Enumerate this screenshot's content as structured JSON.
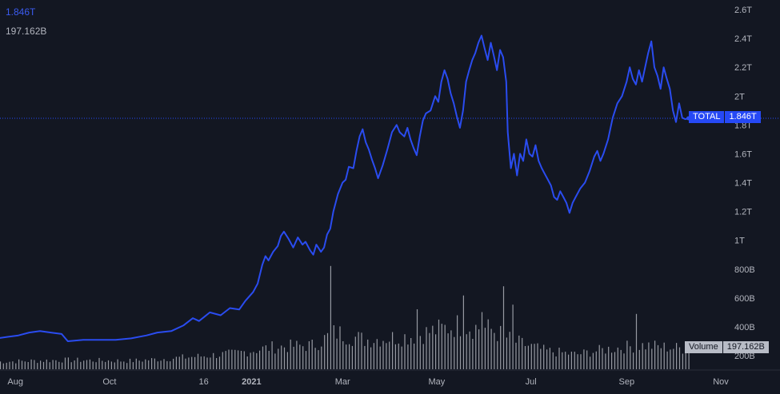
{
  "legend": {
    "price": "1.846T",
    "volume": "197.162B"
  },
  "labels": {
    "total_key": "TOTAL",
    "total_value": "1.846T",
    "volume_key": "Volume",
    "volume_value": "197.162B"
  },
  "colors": {
    "background": "#131722",
    "line": "#2a4cf0",
    "volume": "#c3c6ce",
    "axis_text": "#b2b5be"
  },
  "chart_data": {
    "type": "line",
    "title": "",
    "y_unit": "USD (trillions)",
    "ylim": [
      0.2,
      2.6
    ],
    "ytick_labels": [
      {
        "v": 2.6,
        "t": "2.6T"
      },
      {
        "v": 2.4,
        "t": "2.4T"
      },
      {
        "v": 2.2,
        "t": "2.2T"
      },
      {
        "v": 2.0,
        "t": "2T"
      },
      {
        "v": 1.8,
        "t": "1.8T"
      },
      {
        "v": 1.6,
        "t": "1.6T"
      },
      {
        "v": 1.4,
        "t": "1.4T"
      },
      {
        "v": 1.2,
        "t": "1.2T"
      },
      {
        "v": 1.0,
        "t": "1T"
      },
      {
        "v": 0.8,
        "t": "800B"
      },
      {
        "v": 0.6,
        "t": "600B"
      },
      {
        "v": 0.4,
        "t": "400B"
      },
      {
        "v": 0.2,
        "t": "200B"
      }
    ],
    "xlim": [
      "2020-07-20",
      "2021-11-01"
    ],
    "xtick_labels": [
      {
        "d": "2020-08-01",
        "t": "Aug",
        "bold": false
      },
      {
        "d": "2020-10-01",
        "t": "Oct",
        "bold": false
      },
      {
        "d": "2020-12-01",
        "t": "16",
        "bold": false
      },
      {
        "d": "2021-01-01",
        "t": "2021",
        "bold": true
      },
      {
        "d": "2021-03-01",
        "t": "Mar",
        "bold": false
      },
      {
        "d": "2021-05-01",
        "t": "May",
        "bold": false
      },
      {
        "d": "2021-07-01",
        "t": "Jul",
        "bold": false
      },
      {
        "d": "2021-09-01",
        "t": "Sep",
        "bold": false
      },
      {
        "d": "2021-11-01",
        "t": "Nov",
        "bold": false
      }
    ],
    "last_value": 1.846,
    "series": [
      {
        "points": [
          [
            "2020-07-20",
            0.32
          ],
          [
            "2020-07-27",
            0.33
          ],
          [
            "2020-08-03",
            0.34
          ],
          [
            "2020-08-10",
            0.36
          ],
          [
            "2020-08-17",
            0.37
          ],
          [
            "2020-08-24",
            0.36
          ],
          [
            "2020-08-31",
            0.35
          ],
          [
            "2020-09-04",
            0.3
          ],
          [
            "2020-09-14",
            0.31
          ],
          [
            "2020-09-24",
            0.31
          ],
          [
            "2020-10-05",
            0.31
          ],
          [
            "2020-10-15",
            0.32
          ],
          [
            "2020-10-25",
            0.34
          ],
          [
            "2020-11-01",
            0.36
          ],
          [
            "2020-11-10",
            0.37
          ],
          [
            "2020-11-18",
            0.41
          ],
          [
            "2020-11-24",
            0.46
          ],
          [
            "2020-11-28",
            0.44
          ],
          [
            "2020-12-05",
            0.5
          ],
          [
            "2020-12-12",
            0.48
          ],
          [
            "2020-12-18",
            0.53
          ],
          [
            "2020-12-24",
            0.52
          ],
          [
            "2020-12-28",
            0.58
          ],
          [
            "2021-01-02",
            0.64
          ],
          [
            "2021-01-05",
            0.7
          ],
          [
            "2021-01-08",
            0.83
          ],
          [
            "2021-01-10",
            0.89
          ],
          [
            "2021-01-12",
            0.86
          ],
          [
            "2021-01-15",
            0.92
          ],
          [
            "2021-01-18",
            0.96
          ],
          [
            "2021-01-20",
            1.03
          ],
          [
            "2021-01-22",
            1.06
          ],
          [
            "2021-01-25",
            1.01
          ],
          [
            "2021-01-28",
            0.95
          ],
          [
            "2021-01-31",
            1.02
          ],
          [
            "2021-02-03",
            0.97
          ],
          [
            "2021-02-05",
            0.99
          ],
          [
            "2021-02-08",
            0.93
          ],
          [
            "2021-02-10",
            0.9
          ],
          [
            "2021-02-12",
            0.97
          ],
          [
            "2021-02-15",
            0.92
          ],
          [
            "2021-02-17",
            0.95
          ],
          [
            "2021-02-19",
            1.04
          ],
          [
            "2021-02-21",
            1.08
          ],
          [
            "2021-02-23",
            1.2
          ],
          [
            "2021-02-26",
            1.32
          ],
          [
            "2021-03-01",
            1.4
          ],
          [
            "2021-03-03",
            1.42
          ],
          [
            "2021-03-05",
            1.51
          ],
          [
            "2021-03-08",
            1.5
          ],
          [
            "2021-03-10",
            1.62
          ],
          [
            "2021-03-12",
            1.72
          ],
          [
            "2021-03-14",
            1.77
          ],
          [
            "2021-03-16",
            1.68
          ],
          [
            "2021-03-18",
            1.63
          ],
          [
            "2021-03-20",
            1.56
          ],
          [
            "2021-03-22",
            1.5
          ],
          [
            "2021-03-24",
            1.43
          ],
          [
            "2021-03-27",
            1.52
          ],
          [
            "2021-03-30",
            1.63
          ],
          [
            "2021-04-02",
            1.75
          ],
          [
            "2021-04-05",
            1.8
          ],
          [
            "2021-04-07",
            1.75
          ],
          [
            "2021-04-10",
            1.72
          ],
          [
            "2021-04-12",
            1.78
          ],
          [
            "2021-04-14",
            1.7
          ],
          [
            "2021-04-16",
            1.64
          ],
          [
            "2021-04-18",
            1.59
          ],
          [
            "2021-04-20",
            1.72
          ],
          [
            "2021-04-22",
            1.83
          ],
          [
            "2021-04-24",
            1.88
          ],
          [
            "2021-04-27",
            1.9
          ],
          [
            "2021-04-30",
            2.0
          ],
          [
            "2021-05-02",
            1.96
          ],
          [
            "2021-05-04",
            2.1
          ],
          [
            "2021-05-06",
            2.18
          ],
          [
            "2021-05-08",
            2.12
          ],
          [
            "2021-05-10",
            2.02
          ],
          [
            "2021-05-12",
            1.95
          ],
          [
            "2021-05-14",
            1.86
          ],
          [
            "2021-05-16",
            1.78
          ],
          [
            "2021-05-18",
            1.9
          ],
          [
            "2021-05-20",
            2.1
          ],
          [
            "2021-05-22",
            2.18
          ],
          [
            "2021-05-24",
            2.25
          ],
          [
            "2021-05-26",
            2.3
          ],
          [
            "2021-05-28",
            2.37
          ],
          [
            "2021-05-30",
            2.42
          ],
          [
            "2021-06-01",
            2.33
          ],
          [
            "2021-06-03",
            2.25
          ],
          [
            "2021-06-05",
            2.37
          ],
          [
            "2021-06-07",
            2.28
          ],
          [
            "2021-06-09",
            2.18
          ],
          [
            "2021-06-11",
            2.32
          ],
          [
            "2021-06-13",
            2.27
          ],
          [
            "2021-06-15",
            2.1
          ],
          [
            "2021-06-16",
            1.75
          ],
          [
            "2021-06-18",
            1.5
          ],
          [
            "2021-06-20",
            1.6
          ],
          [
            "2021-06-22",
            1.45
          ],
          [
            "2021-06-24",
            1.6
          ],
          [
            "2021-06-26",
            1.55
          ],
          [
            "2021-06-28",
            1.7
          ],
          [
            "2021-06-30",
            1.6
          ],
          [
            "2021-07-02",
            1.58
          ],
          [
            "2021-07-04",
            1.66
          ],
          [
            "2021-07-06",
            1.55
          ],
          [
            "2021-07-08",
            1.5
          ],
          [
            "2021-07-10",
            1.46
          ],
          [
            "2021-07-12",
            1.42
          ],
          [
            "2021-07-14",
            1.38
          ],
          [
            "2021-07-16",
            1.3
          ],
          [
            "2021-07-18",
            1.28
          ],
          [
            "2021-07-20",
            1.34
          ],
          [
            "2021-07-22",
            1.3
          ],
          [
            "2021-07-24",
            1.26
          ],
          [
            "2021-07-26",
            1.19
          ],
          [
            "2021-07-28",
            1.26
          ],
          [
            "2021-07-30",
            1.3
          ],
          [
            "2021-08-02",
            1.36
          ],
          [
            "2021-08-05",
            1.4
          ],
          [
            "2021-08-08",
            1.48
          ],
          [
            "2021-08-11",
            1.58
          ],
          [
            "2021-08-13",
            1.62
          ],
          [
            "2021-08-15",
            1.55
          ],
          [
            "2021-08-17",
            1.6
          ],
          [
            "2021-08-20",
            1.7
          ],
          [
            "2021-08-23",
            1.85
          ],
          [
            "2021-08-26",
            1.95
          ],
          [
            "2021-08-29",
            2.0
          ],
          [
            "2021-09-01",
            2.1
          ],
          [
            "2021-09-03",
            2.2
          ],
          [
            "2021-09-05",
            2.12
          ],
          [
            "2021-09-07",
            2.08
          ],
          [
            "2021-09-09",
            2.18
          ],
          [
            "2021-09-11",
            2.1
          ],
          [
            "2021-09-13",
            2.2
          ],
          [
            "2021-09-15",
            2.3
          ],
          [
            "2021-09-17",
            2.38
          ],
          [
            "2021-09-19",
            2.2
          ],
          [
            "2021-09-21",
            2.14
          ],
          [
            "2021-09-23",
            2.05
          ],
          [
            "2021-09-25",
            2.2
          ],
          [
            "2021-09-27",
            2.12
          ],
          [
            "2021-09-29",
            2.05
          ],
          [
            "2021-10-01",
            1.9
          ],
          [
            "2021-10-03",
            1.82
          ],
          [
            "2021-10-05",
            1.95
          ],
          [
            "2021-10-07",
            1.85
          ],
          [
            "2021-10-09",
            1.84
          ],
          [
            "2021-10-11",
            1.846
          ]
        ]
      }
    ],
    "volume": {
      "ylim": [
        0,
        1.3
      ],
      "last_value_B": 197.162,
      "anchors": [
        [
          "2020-07-20",
          0.08
        ],
        [
          "2020-09-01",
          0.1
        ],
        [
          "2020-10-15",
          0.09
        ],
        [
          "2020-11-20",
          0.13
        ],
        [
          "2020-12-20",
          0.17
        ],
        [
          "2021-01-15",
          0.24
        ],
        [
          "2021-02-10",
          0.26
        ],
        [
          "2021-02-24",
          0.4
        ],
        [
          "2021-03-15",
          0.32
        ],
        [
          "2021-04-15",
          0.36
        ],
        [
          "2021-05-15",
          0.48
        ],
        [
          "2021-06-05",
          0.43
        ],
        [
          "2021-06-20",
          0.3
        ],
        [
          "2021-07-10",
          0.2
        ],
        [
          "2021-07-30",
          0.16
        ],
        [
          "2021-08-20",
          0.22
        ],
        [
          "2021-09-10",
          0.26
        ],
        [
          "2021-10-11",
          0.22
        ]
      ],
      "spikes": [
        [
          "2021-02-22",
          1.12
        ],
        [
          "2021-04-18",
          0.65
        ],
        [
          "2021-05-19",
          0.8
        ],
        [
          "2021-05-30",
          0.62
        ],
        [
          "2021-06-13",
          0.9
        ],
        [
          "2021-06-20",
          0.7
        ],
        [
          "2021-09-07",
          0.6
        ]
      ]
    }
  }
}
